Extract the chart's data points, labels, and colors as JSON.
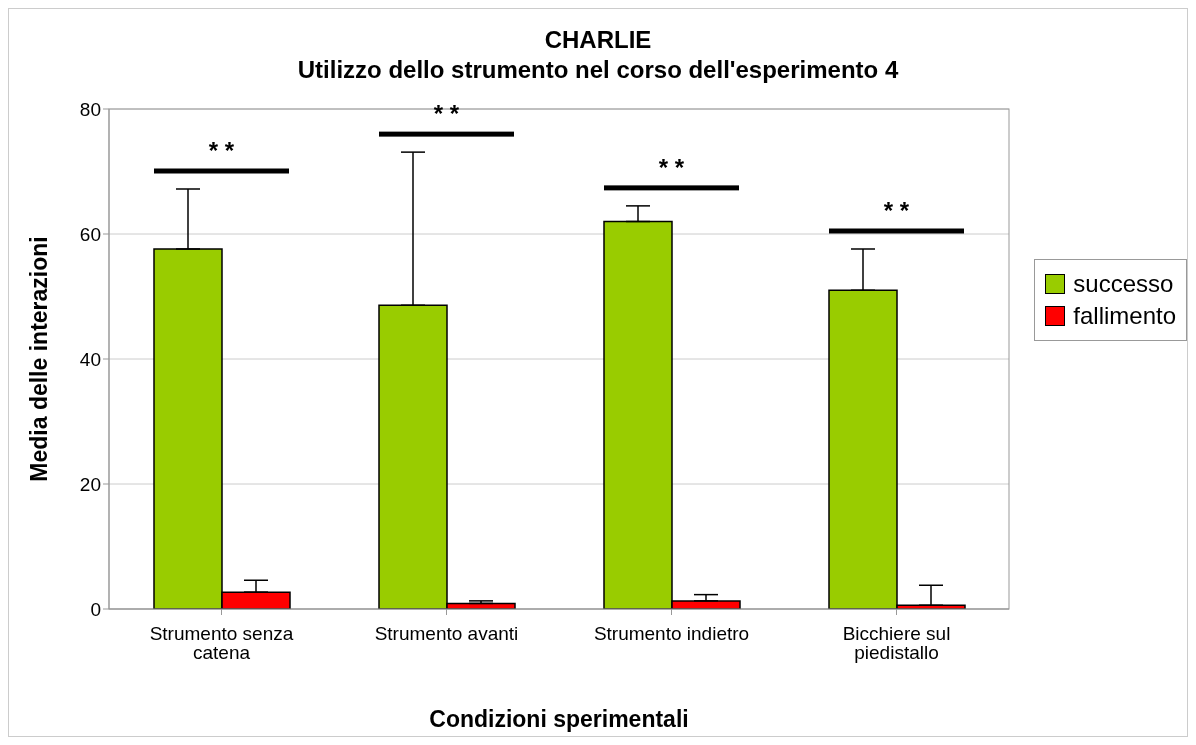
{
  "chart_data": {
    "type": "bar",
    "title": "CHARLIE",
    "subtitle": "Utilizzo dello strumento nel corso dell'esperimento 4",
    "xlabel": "Condizioni sperimentali",
    "ylabel": "Media delle interazioni",
    "categories": [
      "Strumento senza catena",
      "Strumento avanti",
      "Strumento indietro",
      "Bicchiere sul piedistallo"
    ],
    "series": [
      {
        "name": "successo",
        "color": "#99cc00",
        "values": [
          57.6,
          48.6,
          62.0,
          51.0
        ],
        "errors": [
          [
            57.6,
            67.2
          ],
          [
            48.6,
            73.1
          ],
          [
            62.0,
            64.5
          ],
          [
            51.0,
            57.6
          ]
        ]
      },
      {
        "name": "fallimento",
        "color": "#ff0000",
        "values": [
          2.7,
          0.9,
          1.3,
          0.6
        ],
        "errors": [
          [
            2.7,
            4.6
          ],
          [
            0.9,
            1.3
          ],
          [
            1.3,
            2.3
          ],
          [
            0.6,
            3.8
          ]
        ]
      }
    ],
    "ylim": [
      0,
      80
    ],
    "yticks": [
      0,
      20,
      40,
      60,
      80
    ],
    "grid": "y",
    "legend": "right",
    "annotations": [
      "* *",
      "* *",
      "* *",
      "* *"
    ]
  }
}
